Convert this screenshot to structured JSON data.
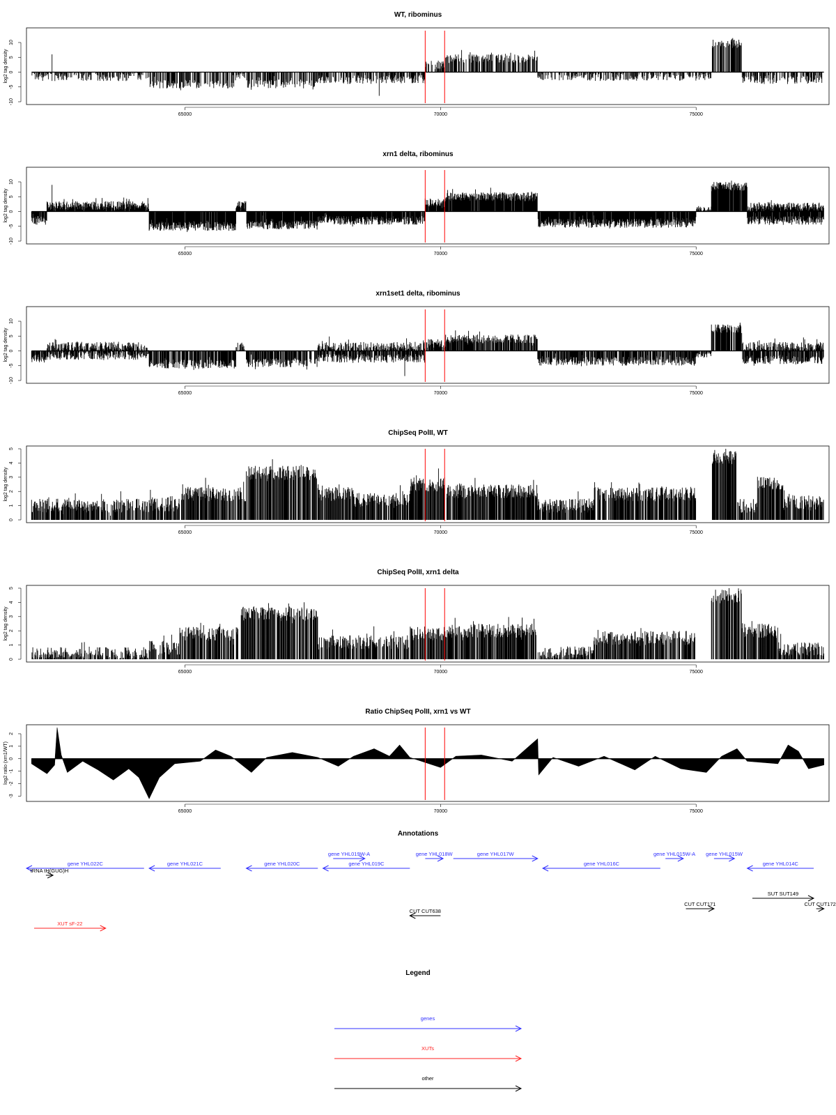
{
  "figure": {
    "annotations_title": "Annotations",
    "legend_title": "Legend"
  },
  "colors": {
    "gene": "#3030ff",
    "xut": "#ff2020",
    "other": "#000000",
    "marker": "#ff0000"
  },
  "chart_data": [
    {
      "type": "bar",
      "title": "WT, ribominus",
      "ylabel": "log2 tag density",
      "xlim": [
        61900,
        77600
      ],
      "ylim": [
        -10,
        14
      ],
      "yticks": [
        -10,
        -5,
        0,
        5,
        10
      ],
      "xticks": [
        65000,
        70000,
        75000
      ],
      "xticklabels": [
        "65000",
        "70000",
        "75000"
      ],
      "markers": [
        69700,
        70080
      ],
      "signal": {
        "baseline": 0,
        "noise": 1.5,
        "density": 0.55,
        "segments": [
          {
            "x": [
              62000,
              64300
            ],
            "y": -1.5
          },
          {
            "x": [
              64300,
              66000
            ],
            "y": -4
          },
          {
            "x": [
              66000,
              66200
            ],
            "y": -1
          },
          {
            "x": [
              66200,
              67600
            ],
            "y": -4
          },
          {
            "x": [
              67600,
              69700
            ],
            "y": -2.5
          },
          {
            "x": [
              69700,
              70100
            ],
            "y": 2.5
          },
          {
            "x": [
              70100,
              71900
            ],
            "y": 4.5
          },
          {
            "x": [
              71900,
              75300
            ],
            "y": -1.5
          },
          {
            "x": [
              75300,
              75900
            ],
            "y": 9.5
          },
          {
            "x": [
              75900,
              77500
            ],
            "y": -2.5
          }
        ],
        "spikes": [
          [
            62400,
            6
          ],
          [
            68800,
            -8
          ]
        ]
      }
    },
    {
      "type": "bar",
      "title": "xrn1 delta, ribominus",
      "ylabel": "log2 tag density",
      "xlim": [
        61900,
        77600
      ],
      "ylim": [
        -10,
        14
      ],
      "yticks": [
        -10,
        -5,
        0,
        5,
        10
      ],
      "xticks": [
        65000,
        70000,
        75000
      ],
      "xticklabels": [
        "65000",
        "70000",
        "75000"
      ],
      "markers": [
        69700,
        70080
      ],
      "signal": {
        "baseline": 0,
        "noise": 1.5,
        "density": 0.95,
        "segments": [
          {
            "x": [
              62000,
              62300
            ],
            "y": -3
          },
          {
            "x": [
              62300,
              64300
            ],
            "y": 2
          },
          {
            "x": [
              64300,
              66000
            ],
            "y": -5
          },
          {
            "x": [
              66000,
              66200
            ],
            "y": 2
          },
          {
            "x": [
              66200,
              67600
            ],
            "y": -4.5
          },
          {
            "x": [
              67600,
              69700
            ],
            "y": -3
          },
          {
            "x": [
              69700,
              70100
            ],
            "y": 3
          },
          {
            "x": [
              70100,
              71900
            ],
            "y": 5
          },
          {
            "x": [
              71900,
              75000
            ],
            "y": -4
          },
          {
            "x": [
              75000,
              75300
            ],
            "y": 0.5
          },
          {
            "x": [
              75300,
              76000
            ],
            "y": 8.5
          },
          {
            "x": [
              76000,
              77500
            ],
            "y": 1.5
          },
          {
            "x": [
              76000,
              77500
            ],
            "y": -3
          }
        ],
        "spikes": [
          [
            62400,
            9
          ]
        ]
      }
    },
    {
      "type": "bar",
      "title": "xrn1set1 delta, ribominus",
      "ylabel": "log2 tag density",
      "xlim": [
        61900,
        77600
      ],
      "ylim": [
        -10,
        14
      ],
      "yticks": [
        -10,
        -5,
        0,
        5,
        10
      ],
      "xticks": [
        65000,
        70000,
        75000
      ],
      "xticklabels": [
        "65000",
        "70000",
        "75000"
      ],
      "markers": [
        69700,
        70080
      ],
      "signal": {
        "baseline": 0,
        "noise": 1.5,
        "density": 0.75,
        "segments": [
          {
            "x": [
              62000,
              62300
            ],
            "y": -2.5
          },
          {
            "x": [
              62300,
              64300
            ],
            "y": 1.5
          },
          {
            "x": [
              62300,
              64300
            ],
            "y": -1.5
          },
          {
            "x": [
              64300,
              66000
            ],
            "y": -4.5
          },
          {
            "x": [
              66000,
              66200
            ],
            "y": 1.5
          },
          {
            "x": [
              66200,
              67600
            ],
            "y": -4
          },
          {
            "x": [
              67600,
              69700
            ],
            "y": -2.5
          },
          {
            "x": [
              67600,
              69700
            ],
            "y": 1.5
          },
          {
            "x": [
              69700,
              70100
            ],
            "y": 2.5
          },
          {
            "x": [
              70100,
              71900
            ],
            "y": 4
          },
          {
            "x": [
              71900,
              75000
            ],
            "y": -3.5
          },
          {
            "x": [
              75000,
              75300
            ],
            "y": -1
          },
          {
            "x": [
              75300,
              75900
            ],
            "y": 7.5
          },
          {
            "x": [
              75900,
              77500
            ],
            "y": 1.5
          },
          {
            "x": [
              75900,
              77500
            ],
            "y": -3
          }
        ],
        "spikes": [
          [
            69300,
            -8.5
          ]
        ]
      }
    },
    {
      "type": "bar",
      "title": "ChipSeq PolII, WT",
      "ylabel": "log2 tag density",
      "xlim": [
        61900,
        77600
      ],
      "ylim": [
        0,
        5
      ],
      "yticks": [
        0,
        1,
        2,
        3,
        4,
        5
      ],
      "xticks": [
        65000,
        70000,
        75000
      ],
      "xticklabels": [
        "65000",
        "70000",
        "75000"
      ],
      "markers": [
        69700,
        70080
      ],
      "signal": {
        "baseline": 0,
        "noise": 0.5,
        "density": 0.7,
        "segments": [
          {
            "x": [
              62000,
              64300
            ],
            "y": 1
          },
          {
            "x": [
              64300,
              64900
            ],
            "y": 1.1
          },
          {
            "x": [
              64900,
              66200
            ],
            "y": 1.8
          },
          {
            "x": [
              66200,
              67600
            ],
            "y": 3.3
          },
          {
            "x": [
              67600,
              68300
            ],
            "y": 1.8
          },
          {
            "x": [
              68300,
              69400
            ],
            "y": 1.4
          },
          {
            "x": [
              69400,
              70100
            ],
            "y": 2.5
          },
          {
            "x": [
              70100,
              71900
            ],
            "y": 2
          },
          {
            "x": [
              71900,
              73000
            ],
            "y": 1
          },
          {
            "x": [
              73000,
              75000
            ],
            "y": 1.8
          },
          {
            "x": [
              75300,
              75800
            ],
            "y": 4.4
          },
          {
            "x": [
              75800,
              76200
            ],
            "y": 1
          },
          {
            "x": [
              76200,
              76700
            ],
            "y": 2.6
          },
          {
            "x": [
              76700,
              77500
            ],
            "y": 1.2
          }
        ],
        "spikes": []
      }
    },
    {
      "type": "bar",
      "title": "ChipSeq PolII, xrn1 delta",
      "ylabel": "log2 tag density",
      "xlim": [
        61900,
        77600
      ],
      "ylim": [
        0,
        5
      ],
      "yticks": [
        0,
        1,
        2,
        3,
        4,
        5
      ],
      "xticks": [
        65000,
        70000,
        75000
      ],
      "xticklabels": [
        "65000",
        "70000",
        "75000"
      ],
      "markers": [
        69700,
        70080
      ],
      "signal": {
        "baseline": 0,
        "noise": 0.5,
        "density": 0.65,
        "segments": [
          {
            "x": [
              62000,
              64300
            ],
            "y": 0.35
          },
          {
            "x": [
              64300,
              64900
            ],
            "y": 0.8
          },
          {
            "x": [
              64900,
              66100
            ],
            "y": 1.8
          },
          {
            "x": [
              66100,
              67600
            ],
            "y": 3.2
          },
          {
            "x": [
              67600,
              69400
            ],
            "y": 1.2
          },
          {
            "x": [
              69400,
              70100
            ],
            "y": 1.8
          },
          {
            "x": [
              70100,
              71900
            ],
            "y": 2
          },
          {
            "x": [
              71900,
              73000
            ],
            "y": 0.4
          },
          {
            "x": [
              73000,
              75000
            ],
            "y": 1.5
          },
          {
            "x": [
              75300,
              75900
            ],
            "y": 4.4
          },
          {
            "x": [
              75900,
              76600
            ],
            "y": 2
          },
          {
            "x": [
              76600,
              77500
            ],
            "y": 0.7
          }
        ],
        "spikes": []
      }
    },
    {
      "type": "area",
      "title": "Ratio ChipSeq PolII, xrn1 vs WT",
      "ylabel": "log2 ratio (xrn1/WT)",
      "xlim": [
        61900,
        77600
      ],
      "ylim": [
        -3.2,
        2.5
      ],
      "yticks": [
        -3,
        -2,
        -1,
        0,
        1,
        2
      ],
      "xticks": [
        65000,
        70000,
        75000
      ],
      "xticklabels": [
        "65000",
        "70000",
        "75000"
      ],
      "markers": [
        69700,
        70080
      ],
      "profile": [
        [
          62000,
          -0.4
        ],
        [
          62300,
          -1.2
        ],
        [
          62450,
          -0.5
        ],
        [
          62500,
          2.5
        ],
        [
          62580,
          0.3
        ],
        [
          62700,
          -1.1
        ],
        [
          63000,
          -0.2
        ],
        [
          63300,
          -0.9
        ],
        [
          63600,
          -1.7
        ],
        [
          63900,
          -0.8
        ],
        [
          64100,
          -1.5
        ],
        [
          64300,
          -3.2
        ],
        [
          64500,
          -1.5
        ],
        [
          64800,
          -0.4
        ],
        [
          65300,
          -0.2
        ],
        [
          65600,
          0.7
        ],
        [
          65900,
          0.2
        ],
        [
          66300,
          -1.1
        ],
        [
          66600,
          0.1
        ],
        [
          67100,
          0.5
        ],
        [
          67600,
          0.1
        ],
        [
          68000,
          -0.6
        ],
        [
          68300,
          0.2
        ],
        [
          68700,
          0.8
        ],
        [
          69000,
          0.2
        ],
        [
          69200,
          1.1
        ],
        [
          69400,
          0.1
        ],
        [
          69700,
          -0.3
        ],
        [
          70000,
          -0.7
        ],
        [
          70300,
          0.2
        ],
        [
          70800,
          0.3
        ],
        [
          71400,
          -0.2
        ],
        [
          71900,
          1.6
        ],
        [
          71920,
          -1.3
        ],
        [
          72200,
          0.1
        ],
        [
          72700,
          -0.6
        ],
        [
          73200,
          0.2
        ],
        [
          73800,
          -0.9
        ],
        [
          74200,
          0.2
        ],
        [
          74700,
          -0.8
        ],
        [
          75200,
          -1.1
        ],
        [
          75500,
          0.2
        ],
        [
          75800,
          0.8
        ],
        [
          76000,
          -0.2
        ],
        [
          76600,
          -0.4
        ],
        [
          76800,
          1.1
        ],
        [
          77000,
          0.6
        ],
        [
          77200,
          -0.8
        ],
        [
          77500,
          -0.5
        ]
      ]
    },
    {
      "type": "table",
      "title": "Annotations",
      "features": [
        {
          "label": "gene YHL022C",
          "cls": "gene",
          "start": 61900,
          "end": 64200,
          "strand": "-",
          "row": 1
        },
        {
          "label": "tRNA tH(GUG)H",
          "cls": "other",
          "start": 62280,
          "end": 62420,
          "strand": "+",
          "row": 2
        },
        {
          "label": "gene YHL021C",
          "cls": "gene",
          "start": 64300,
          "end": 65700,
          "strand": "-",
          "row": 1
        },
        {
          "label": "gene YHL020C",
          "cls": "gene",
          "start": 66200,
          "end": 67600,
          "strand": "-",
          "row": 1
        },
        {
          "label": "gene YHL019W-A",
          "cls": "gene",
          "start": 67900,
          "end": 68520,
          "strand": "+",
          "row": 0
        },
        {
          "label": "gene YHL019C",
          "cls": "gene",
          "start": 67700,
          "end": 69400,
          "strand": "-",
          "row": 1
        },
        {
          "label": "gene YHL018W",
          "cls": "gene",
          "start": 69700,
          "end": 70050,
          "strand": "+",
          "row": 0
        },
        {
          "label": "gene YHL017W",
          "cls": "gene",
          "start": 70250,
          "end": 71900,
          "strand": "+",
          "row": 0
        },
        {
          "label": "gene YHL016C",
          "cls": "gene",
          "start": 72000,
          "end": 74300,
          "strand": "-",
          "row": 1
        },
        {
          "label": "gene YHL015W-A",
          "cls": "gene",
          "start": 74400,
          "end": 74750,
          "strand": "+",
          "row": 0
        },
        {
          "label": "gene YHL015W",
          "cls": "gene",
          "start": 75350,
          "end": 75750,
          "strand": "+",
          "row": 0
        },
        {
          "label": "gene YHL014C",
          "cls": "gene",
          "start": 76000,
          "end": 77300,
          "strand": "-",
          "row": 1
        },
        {
          "label": "SUT SUT149",
          "cls": "other",
          "start": 76100,
          "end": 77300,
          "strand": "+",
          "row": 3
        },
        {
          "label": "CUT CUT171",
          "cls": "other",
          "start": 74800,
          "end": 75350,
          "strand": "+",
          "row": 4
        },
        {
          "label": "CUT CUT172",
          "cls": "other",
          "start": 77350,
          "end": 77500,
          "strand": "+",
          "row": 4
        },
        {
          "label": "CUT CUT638",
          "cls": "other",
          "start": 69400,
          "end": 70000,
          "strand": "-",
          "row": 5
        },
        {
          "label": "XUT sF-22",
          "cls": "xut",
          "start": 62050,
          "end": 63450,
          "strand": "+",
          "row": 6
        }
      ]
    },
    {
      "type": "table",
      "title": "Legend",
      "entries": [
        {
          "label": "genes",
          "cls": "gene"
        },
        {
          "label": "XUTs",
          "cls": "xut"
        },
        {
          "label": "other",
          "cls": "other"
        }
      ]
    }
  ]
}
